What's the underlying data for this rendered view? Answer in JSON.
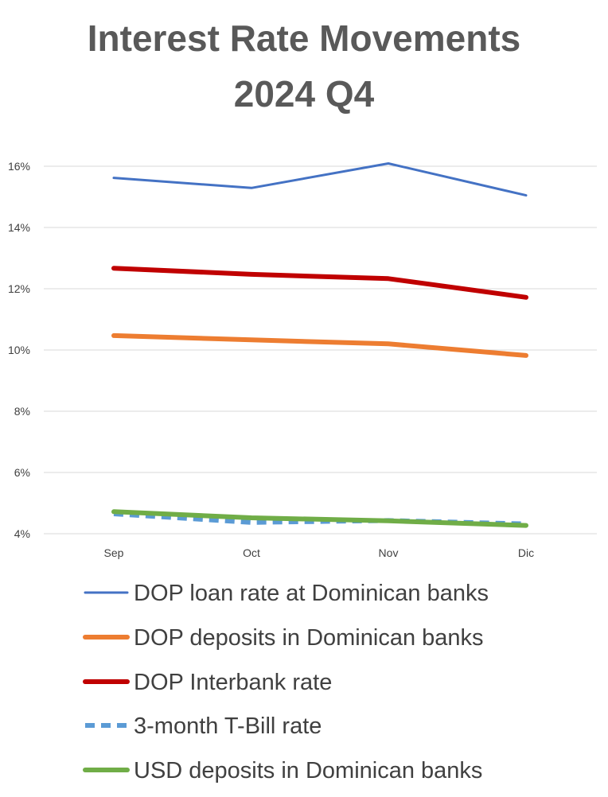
{
  "chart_data": {
    "type": "line",
    "title_lines": [
      "Interest Rate Movements",
      "2024 Q4"
    ],
    "categories": [
      "Sep",
      "Oct",
      "Nov",
      "Dic"
    ],
    "y_ticks": [
      "4%",
      "6%",
      "8%",
      "10%",
      "12%",
      "14%",
      "16%"
    ],
    "ylim": [
      4,
      16
    ],
    "grid": true,
    "legend_position": "bottom",
    "series": [
      {
        "name": "DOP loan rate at Dominican banks",
        "color": "#4472C4",
        "style": "solid",
        "width": "thin",
        "values": [
          15.62,
          15.29,
          16.09,
          15.05
        ]
      },
      {
        "name": "DOP deposits in Dominican banks",
        "color": "#ED7D31",
        "style": "solid",
        "width": "thick",
        "values": [
          10.47,
          10.33,
          10.2,
          9.82
        ]
      },
      {
        "name": "DOP Interbank rate",
        "color": "#C00000",
        "style": "solid",
        "width": "thick",
        "values": [
          12.67,
          12.47,
          12.33,
          11.72
        ]
      },
      {
        "name": "3-month T-Bill rate",
        "color": "#5B9BD5",
        "style": "dashed",
        "width": "thick",
        "values": [
          4.65,
          4.37,
          4.43,
          4.32
        ]
      },
      {
        "name": "USD deposits in Dominican banks",
        "color": "#70AD47",
        "style": "solid",
        "width": "thick",
        "values": [
          4.72,
          4.52,
          4.42,
          4.27
        ]
      }
    ]
  }
}
